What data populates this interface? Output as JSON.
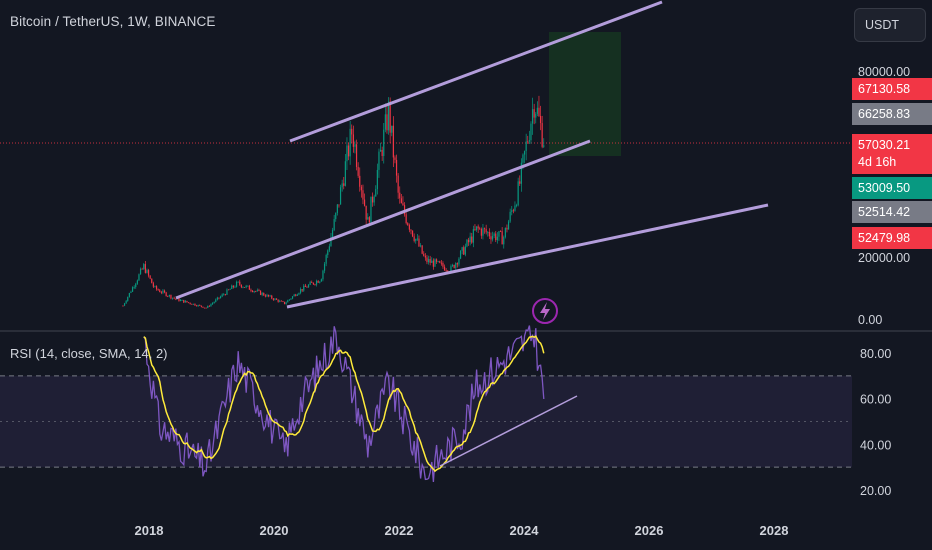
{
  "header": {
    "symbol_title": "Bitcoin / TetherUS, 1W, BINANCE",
    "currency": "USDT"
  },
  "price_axis": {
    "ticks": [
      {
        "value": 80000,
        "label": "80000.00"
      },
      {
        "value": 20000,
        "label": "20000.00"
      },
      {
        "value": 0,
        "label": "0.00"
      }
    ],
    "labels": [
      {
        "value": 67130.58,
        "text": "67130.58",
        "color": "#f23645"
      },
      {
        "value": 66258.83,
        "text": "66258.83",
        "color": "#787b86"
      },
      {
        "value": 57030.21,
        "text": "57030.21",
        "subtext": "4d 16h",
        "color": "#f23645"
      },
      {
        "value": 53009.5,
        "text": "53009.50",
        "color": "#089981"
      },
      {
        "value": 52514.42,
        "text": "52514.42",
        "color": "#787b86"
      },
      {
        "value": 52479.98,
        "text": "52479.98",
        "color": "#f23645"
      }
    ]
  },
  "rsi": {
    "title": "RSI (14, close, SMA, 14, 2)",
    "ticks": [
      {
        "value": 80,
        "label": "80.00"
      },
      {
        "value": 60,
        "label": "60.00"
      },
      {
        "value": 40,
        "label": "40.00"
      },
      {
        "value": 20,
        "label": "20.00"
      }
    ],
    "upper_band": 70,
    "lower_band": 30,
    "middle_band": 50
  },
  "time_axis": {
    "labels": [
      "2018",
      "2020",
      "2022",
      "2024",
      "2026",
      "2028"
    ]
  },
  "colors": {
    "background": "#131722",
    "candle_up": "#089981",
    "candle_down": "#f23645",
    "trendline": "#b39ddb",
    "rsi_line": "#7e57c2",
    "rsi_ma": "#ffeb3b",
    "rsi_band_fill": "#7e57c2",
    "target_box": "#1b5e20",
    "lightning_icon": "#9c27b0"
  },
  "chart_data": {
    "type": "candlestick",
    "interval": "1W",
    "current_price": 57030.21,
    "price_series": [
      {
        "date": "2017-08",
        "close": 4300
      },
      {
        "date": "2017-12",
        "close": 17000
      },
      {
        "date": "2018-02",
        "close": 10000
      },
      {
        "date": "2018-06",
        "close": 6500
      },
      {
        "date": "2018-12",
        "close": 3600
      },
      {
        "date": "2019-06",
        "close": 11500
      },
      {
        "date": "2019-12",
        "close": 7200
      },
      {
        "date": "2020-03",
        "close": 5000
      },
      {
        "date": "2020-06",
        "close": 9300
      },
      {
        "date": "2020-10",
        "close": 13000
      },
      {
        "date": "2021-01",
        "close": 34000
      },
      {
        "date": "2021-04",
        "close": 61000
      },
      {
        "date": "2021-07",
        "close": 31000
      },
      {
        "date": "2021-11",
        "close": 67000
      },
      {
        "date": "2022-01",
        "close": 38000
      },
      {
        "date": "2022-06",
        "close": 19000
      },
      {
        "date": "2022-11",
        "close": 16000
      },
      {
        "date": "2023-04",
        "close": 29000
      },
      {
        "date": "2023-09",
        "close": 26000
      },
      {
        "date": "2023-12",
        "close": 42000
      },
      {
        "date": "2024-03",
        "close": 71000
      },
      {
        "date": "2024-04",
        "close": 63000
      },
      {
        "date": "2024-05",
        "close": 57030
      }
    ],
    "rsi_series": [
      {
        "date": "2017-12",
        "value": 88
      },
      {
        "date": "2018-03",
        "value": 48
      },
      {
        "date": "2018-12",
        "value": 30
      },
      {
        "date": "2019-06",
        "value": 76
      },
      {
        "date": "2020-03",
        "value": 37
      },
      {
        "date": "2020-06",
        "value": 58
      },
      {
        "date": "2021-01",
        "value": 88
      },
      {
        "date": "2021-07",
        "value": 40
      },
      {
        "date": "2021-11",
        "value": 67
      },
      {
        "date": "2022-06",
        "value": 27
      },
      {
        "date": "2023-01",
        "value": 45
      },
      {
        "date": "2023-04",
        "value": 66
      },
      {
        "date": "2024-03",
        "value": 89
      },
      {
        "date": "2024-05",
        "value": 58
      }
    ]
  }
}
